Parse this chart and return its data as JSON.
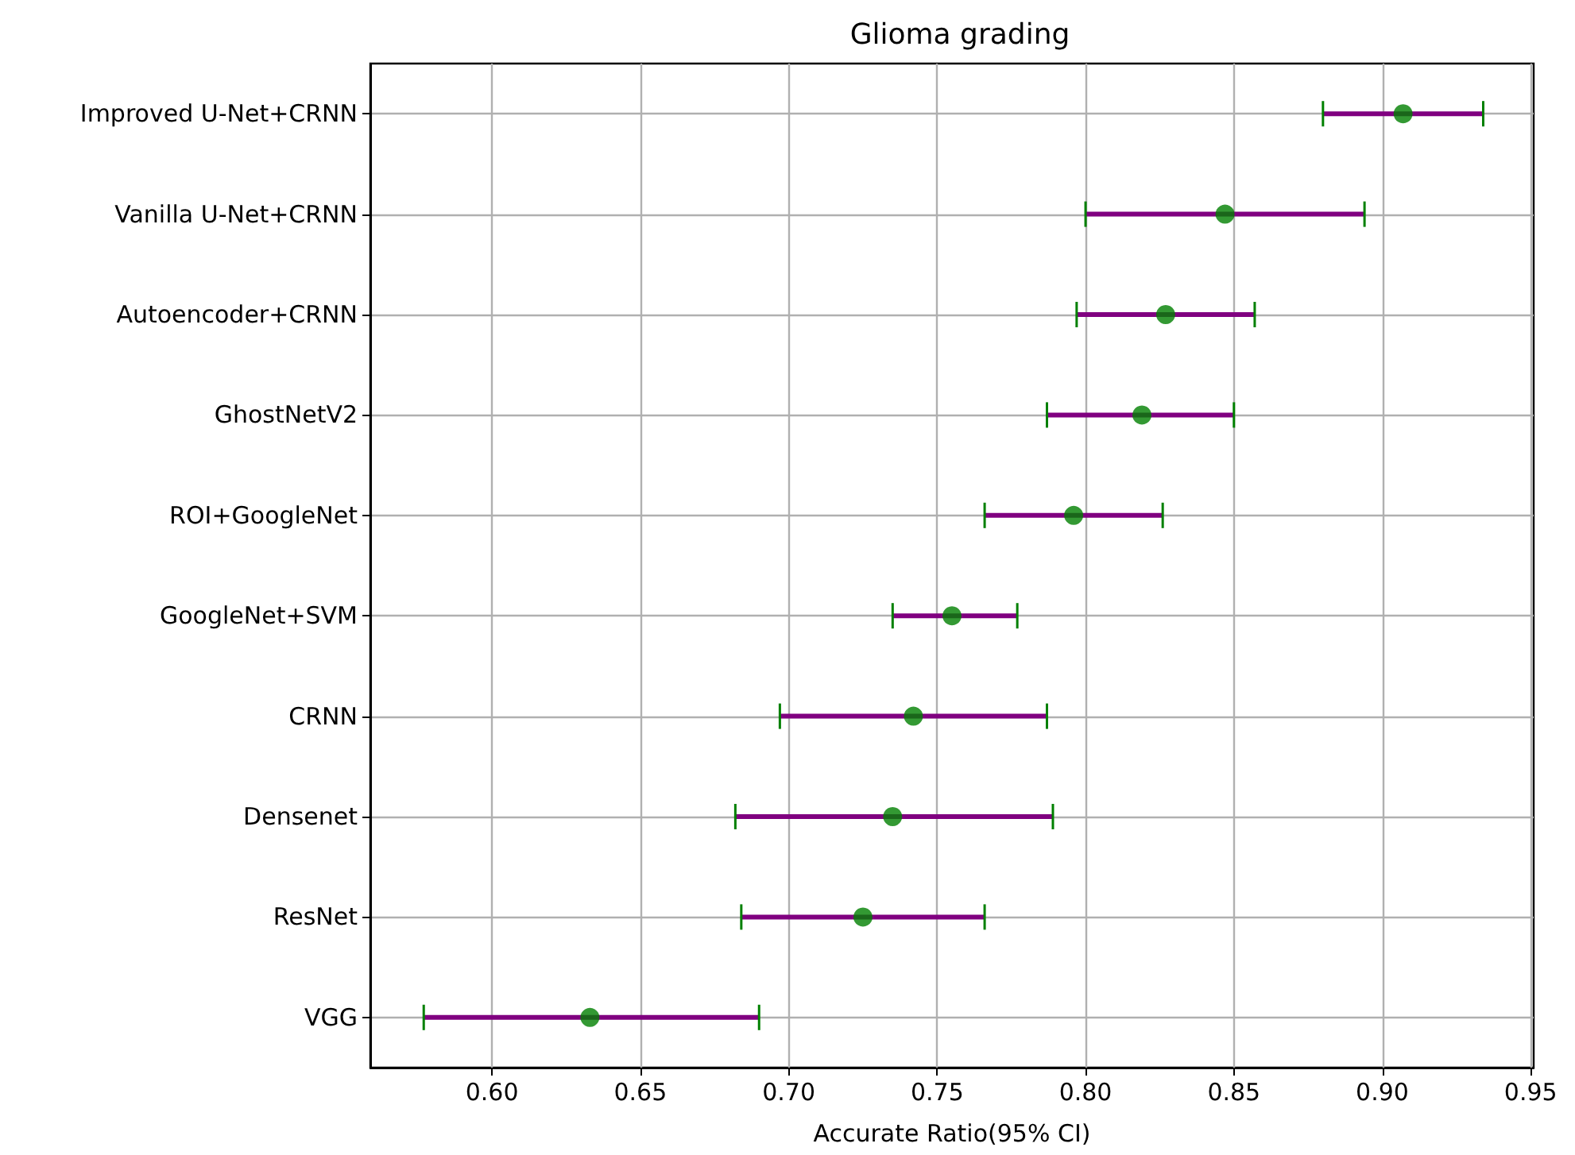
{
  "chart_data": {
    "type": "scatter",
    "orientation": "horizontal",
    "title": "Glioma grading",
    "xlabel": "Accurate Ratio(95% CI)",
    "categories": [
      "Improved U-Net+CRNN",
      "Vanilla U-Net+CRNN",
      "Autoencoder+CRNN",
      "GhostNetV2",
      "ROI+GoogleNet",
      "GoogleNet+SVM",
      "CRNN",
      "Densenet",
      "ResNet",
      "VGG"
    ],
    "series": [
      {
        "color": "#008000",
        "values": [
          0.907,
          0.847,
          0.827,
          0.819,
          0.796,
          0.755,
          0.742,
          0.735,
          0.725,
          0.633
        ],
        "errors": [
          [
            0.88,
            0.934
          ],
          [
            0.8,
            0.894
          ],
          [
            0.797,
            0.857
          ],
          [
            0.787,
            0.85
          ],
          [
            0.766,
            0.826
          ],
          [
            0.735,
            0.777
          ],
          [
            0.697,
            0.787
          ],
          [
            0.682,
            0.789
          ],
          [
            0.684,
            0.766
          ],
          [
            0.577,
            0.69
          ]
        ]
      }
    ],
    "xlim": [
      0.559,
      0.951
    ],
    "xticks": [
      {
        "value": 0.6,
        "label": "0.60"
      },
      {
        "value": 0.65,
        "label": "0.65"
      },
      {
        "value": 0.7,
        "label": "0.70"
      },
      {
        "value": 0.75,
        "label": "0.75"
      },
      {
        "value": 0.8,
        "label": "0.80"
      },
      {
        "value": 0.85,
        "label": "0.85"
      },
      {
        "value": 0.9,
        "label": "0.90"
      },
      {
        "value": 0.95,
        "label": "0.95"
      }
    ],
    "grid": true,
    "marker": "circle"
  }
}
